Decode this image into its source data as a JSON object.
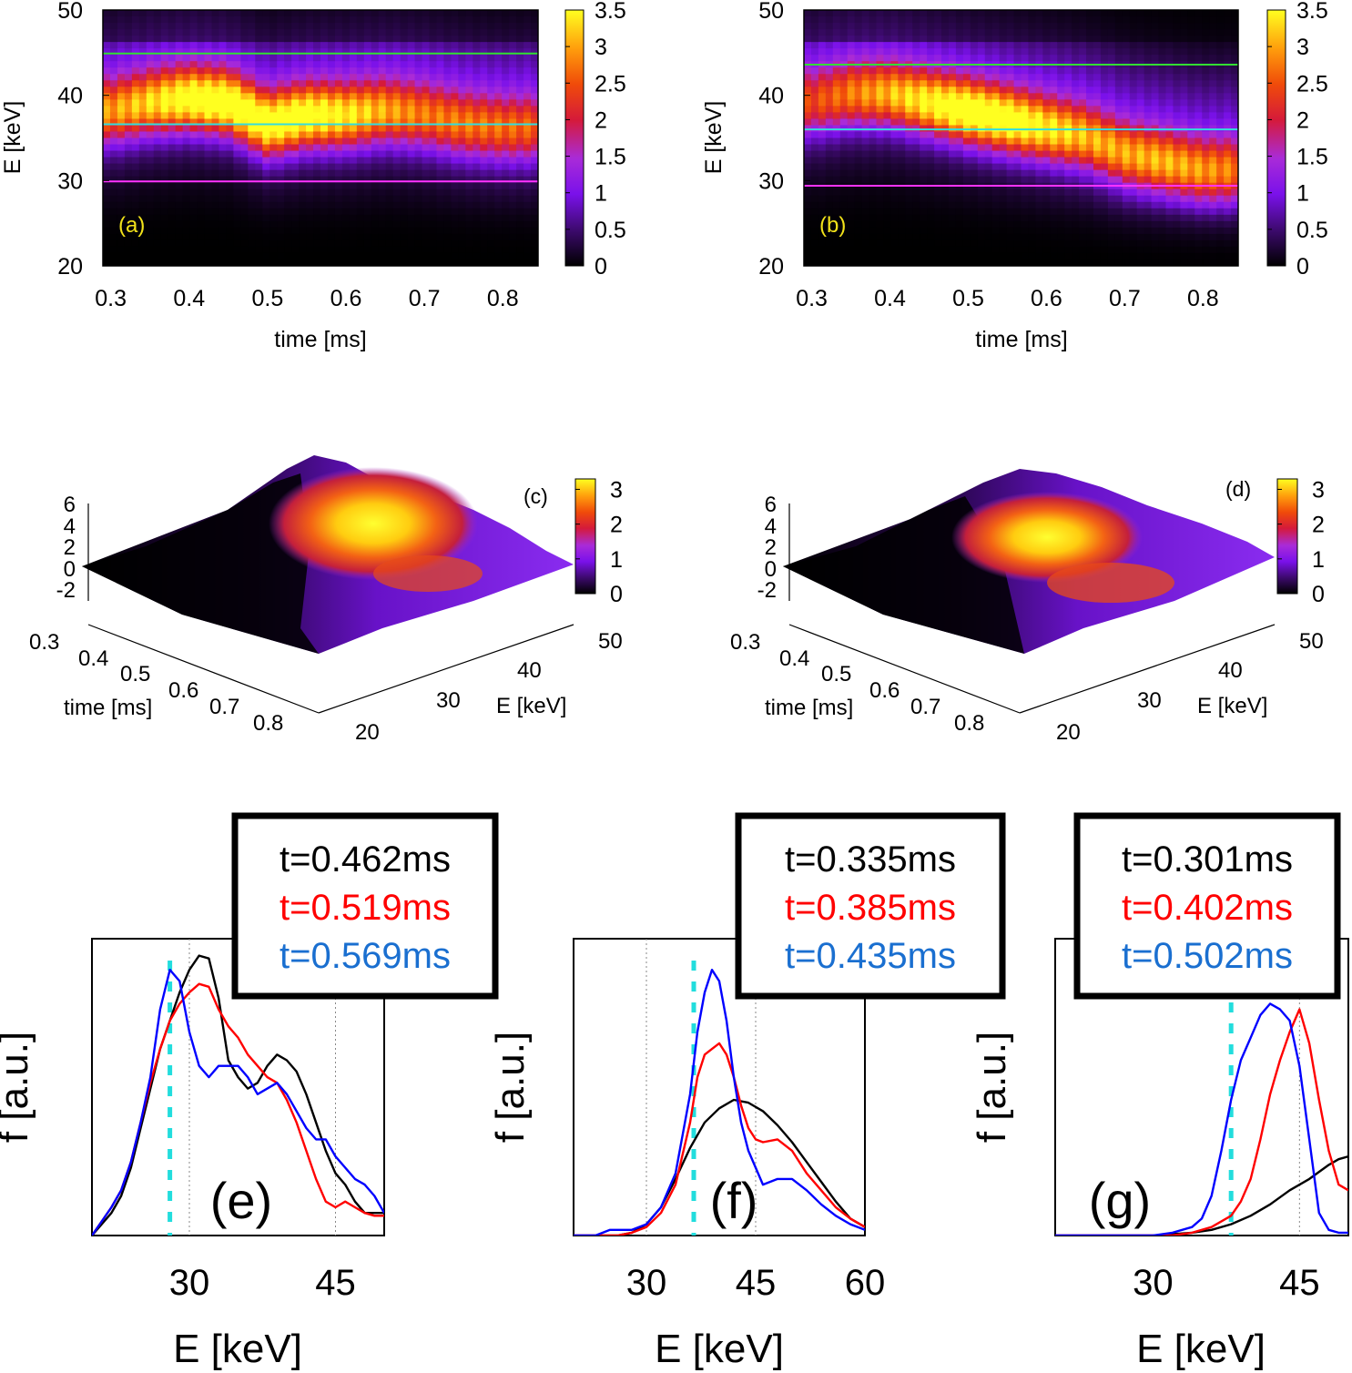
{
  "heatmaps": [
    {
      "label": "(a)",
      "xlabel": "time [ms]",
      "ylabel": "E [keV]",
      "xticks": [
        "0.3",
        "0.4",
        "0.5",
        "0.6",
        "0.7",
        "0.8"
      ],
      "xtick_values": [
        0.3,
        0.4,
        0.5,
        0.6,
        0.7,
        0.8
      ],
      "yticks": [
        "20",
        "30",
        "40",
        "50"
      ],
      "ytick_values": [
        20,
        30,
        40,
        50
      ],
      "xlim": [
        0.29,
        0.845
      ],
      "ylim": [
        20,
        50
      ],
      "cbar_ticks": [
        "0",
        "0.5",
        "1",
        "1.5",
        "2",
        "2.5",
        "3",
        "3.5"
      ],
      "cbar_values": [
        0,
        0.5,
        1,
        1.5,
        2,
        2.5,
        3,
        3.5
      ],
      "cbar_range": [
        0,
        3.5
      ],
      "hlines": [
        {
          "E": 44.9,
          "color": "#33dd33"
        },
        {
          "E": 36.6,
          "color": "#33dddd"
        },
        {
          "E": 29.9,
          "color": "#ff33ff"
        }
      ],
      "ridge": [
        [
          0.3,
          38
        ],
        [
          0.35,
          39
        ],
        [
          0.4,
          39.5
        ],
        [
          0.45,
          39
        ],
        [
          0.5,
          36.5
        ],
        [
          0.55,
          37.5
        ],
        [
          0.6,
          37.5
        ],
        [
          0.65,
          38
        ],
        [
          0.7,
          37.5
        ],
        [
          0.75,
          36.5
        ],
        [
          0.8,
          36
        ],
        [
          0.84,
          36
        ]
      ],
      "amplitude": [
        [
          0.3,
          2.2
        ],
        [
          0.35,
          2.6
        ],
        [
          0.4,
          3.2
        ],
        [
          0.45,
          3.4
        ],
        [
          0.5,
          3.3
        ],
        [
          0.55,
          3.2
        ],
        [
          0.6,
          2.8
        ],
        [
          0.65,
          2.3
        ],
        [
          0.7,
          2.0
        ],
        [
          0.75,
          2.0
        ],
        [
          0.8,
          1.9
        ],
        [
          0.84,
          1.8
        ]
      ]
    },
    {
      "label": "(b)",
      "xlabel": "time [ms]",
      "ylabel": "E [keV]",
      "xticks": [
        "0.3",
        "0.4",
        "0.5",
        "0.6",
        "0.7",
        "0.8"
      ],
      "xtick_values": [
        0.3,
        0.4,
        0.5,
        0.6,
        0.7,
        0.8
      ],
      "yticks": [
        "20",
        "30",
        "40",
        "50"
      ],
      "ytick_values": [
        20,
        30,
        40,
        50
      ],
      "xlim": [
        0.29,
        0.845
      ],
      "ylim": [
        20,
        50
      ],
      "cbar_ticks": [
        "0",
        "0.5",
        "1",
        "1.5",
        "2",
        "2.5",
        "3",
        "3.5"
      ],
      "cbar_values": [
        0,
        0.5,
        1,
        1.5,
        2,
        2.5,
        3,
        3.5
      ],
      "cbar_range": [
        0,
        3.5
      ],
      "hlines": [
        {
          "E": 43.6,
          "color": "#33dd33"
        },
        {
          "E": 36.0,
          "color": "#33dddd"
        },
        {
          "E": 29.4,
          "color": "#ff33ff"
        }
      ],
      "ridge": [
        [
          0.3,
          39
        ],
        [
          0.35,
          40
        ],
        [
          0.4,
          40
        ],
        [
          0.45,
          39
        ],
        [
          0.5,
          38
        ],
        [
          0.55,
          37
        ],
        [
          0.6,
          36
        ],
        [
          0.65,
          35
        ],
        [
          0.7,
          33
        ],
        [
          0.75,
          32
        ],
        [
          0.8,
          31
        ],
        [
          0.84,
          31
        ]
      ],
      "amplitude": [
        [
          0.3,
          1.6
        ],
        [
          0.35,
          2.0
        ],
        [
          0.4,
          2.4
        ],
        [
          0.45,
          2.9
        ],
        [
          0.5,
          3.4
        ],
        [
          0.55,
          3.3
        ],
        [
          0.6,
          2.8
        ],
        [
          0.65,
          2.4
        ],
        [
          0.7,
          2.3
        ],
        [
          0.75,
          2.4
        ],
        [
          0.8,
          2.2
        ],
        [
          0.84,
          2.0
        ]
      ]
    }
  ],
  "surfaces": [
    {
      "label": "(c)",
      "zticks": [
        "6",
        "4",
        "2",
        "0",
        "-2"
      ],
      "time_ticks": [
        "0.3",
        "0.4",
        "0.5",
        "0.6",
        "0.7",
        "0.8"
      ],
      "time_label": "time [ms]",
      "E_ticks": [
        "20",
        "30",
        "40",
        "50"
      ],
      "E_label": "E [keV]",
      "cbar_ticks": [
        "0",
        "1",
        "2",
        "3"
      ],
      "cbar_values": [
        0,
        1,
        2,
        3
      ],
      "cbar_range": [
        0,
        3.3
      ]
    },
    {
      "label": "(d)",
      "zticks": [
        "6",
        "4",
        "2",
        "0",
        "-2"
      ],
      "time_ticks": [
        "0.3",
        "0.4",
        "0.5",
        "0.6",
        "0.7",
        "0.8"
      ],
      "time_label": "time [ms]",
      "E_ticks": [
        "20",
        "30",
        "40",
        "50"
      ],
      "E_label": "E [keV]",
      "cbar_ticks": [
        "0",
        "1",
        "2",
        "3"
      ],
      "cbar_values": [
        0,
        1,
        2,
        3
      ],
      "cbar_range": [
        0,
        3.3
      ]
    }
  ],
  "chart_data": [
    {
      "type": "line",
      "panel": "(e)",
      "xlabel": "E [keV]",
      "ylabel": "f [a.u.]",
      "xlim": [
        20,
        50
      ],
      "ylim": [
        0,
        1.05
      ],
      "xticks": [
        "30",
        "45"
      ],
      "xtick_values": [
        30,
        45
      ],
      "gridlines_x": [
        30,
        45
      ],
      "vline": {
        "E": 28,
        "color": "#22dddd"
      },
      "legend": [
        "t=0.462ms",
        "t=0.519ms",
        "t=0.569ms"
      ],
      "series": [
        {
          "name": "t=0.462ms",
          "color": "#000000",
          "x": [
            20,
            21,
            22,
            23,
            24,
            25,
            26,
            27,
            28,
            29,
            30,
            31,
            32,
            33,
            34,
            35,
            36,
            37,
            38,
            39,
            40,
            41,
            42,
            43,
            44,
            45,
            46,
            47,
            48,
            49,
            50
          ],
          "y": [
            0.0,
            0.04,
            0.08,
            0.14,
            0.24,
            0.38,
            0.52,
            0.66,
            0.76,
            0.86,
            0.94,
            0.99,
            0.98,
            0.84,
            0.62,
            0.56,
            0.52,
            0.54,
            0.6,
            0.64,
            0.62,
            0.58,
            0.5,
            0.4,
            0.3,
            0.22,
            0.18,
            0.12,
            0.08,
            0.08,
            0.08
          ]
        },
        {
          "name": "t=0.519ms",
          "color": "#ff0000",
          "x": [
            20,
            21,
            22,
            23,
            24,
            25,
            26,
            27,
            28,
            29,
            30,
            31,
            32,
            33,
            34,
            35,
            36,
            37,
            38,
            39,
            40,
            41,
            42,
            43,
            44,
            45,
            46,
            47,
            48,
            49,
            50
          ],
          "y": [
            0.0,
            0.05,
            0.1,
            0.16,
            0.26,
            0.4,
            0.54,
            0.66,
            0.76,
            0.82,
            0.86,
            0.89,
            0.88,
            0.8,
            0.74,
            0.7,
            0.64,
            0.6,
            0.56,
            0.54,
            0.48,
            0.4,
            0.3,
            0.2,
            0.12,
            0.1,
            0.12,
            0.1,
            0.08,
            0.07,
            0.07
          ]
        },
        {
          "name": "t=0.569ms",
          "color": "#0000ff",
          "x": [
            20,
            21,
            22,
            23,
            24,
            25,
            26,
            27,
            28,
            29,
            30,
            31,
            32,
            33,
            34,
            35,
            36,
            37,
            38,
            39,
            40,
            41,
            42,
            43,
            44,
            45,
            46,
            47,
            48,
            49,
            50
          ],
          "y": [
            0.0,
            0.05,
            0.1,
            0.16,
            0.26,
            0.4,
            0.56,
            0.8,
            0.94,
            0.9,
            0.72,
            0.6,
            0.56,
            0.6,
            0.6,
            0.6,
            0.56,
            0.5,
            0.52,
            0.54,
            0.5,
            0.44,
            0.38,
            0.34,
            0.34,
            0.28,
            0.24,
            0.2,
            0.18,
            0.14,
            0.08
          ]
        }
      ]
    },
    {
      "type": "line",
      "panel": "(f)",
      "xlabel": "E [keV]",
      "ylabel": "f [a.u.]",
      "xlim": [
        20,
        60
      ],
      "ylim": [
        0,
        1.05
      ],
      "xticks": [
        "30",
        "45",
        "60"
      ],
      "xtick_values": [
        30,
        45,
        60
      ],
      "gridlines_x": [
        30,
        45
      ],
      "vline": {
        "E": 36.5,
        "color": "#22dddd"
      },
      "legend": [
        "t=0.335ms",
        "t=0.385ms",
        "t=0.435ms"
      ],
      "series": [
        {
          "name": "t=0.335ms",
          "color": "#000000",
          "x": [
            20,
            23,
            26,
            28,
            30,
            32,
            34,
            36,
            38,
            40,
            42,
            44,
            46,
            48,
            50,
            52,
            54,
            56,
            58,
            60
          ],
          "y": [
            0.0,
            0.0,
            0.0,
            0.01,
            0.04,
            0.1,
            0.2,
            0.31,
            0.4,
            0.45,
            0.48,
            0.47,
            0.44,
            0.39,
            0.33,
            0.26,
            0.19,
            0.12,
            0.06,
            0.03
          ]
        },
        {
          "name": "t=0.385ms",
          "color": "#ff0000",
          "x": [
            20,
            23,
            26,
            28,
            30,
            32,
            34,
            36,
            37,
            38,
            39,
            40,
            41,
            42,
            43,
            44,
            45,
            46,
            48,
            50,
            52,
            54,
            56,
            58,
            60
          ],
          "y": [
            0.0,
            0.0,
            0.0,
            0.01,
            0.03,
            0.08,
            0.18,
            0.4,
            0.56,
            0.64,
            0.66,
            0.68,
            0.64,
            0.56,
            0.46,
            0.38,
            0.34,
            0.33,
            0.34,
            0.3,
            0.22,
            0.16,
            0.1,
            0.06,
            0.03
          ]
        },
        {
          "name": "t=0.435ms",
          "color": "#0000ff",
          "x": [
            20,
            23,
            25,
            26,
            28,
            30,
            32,
            34,
            36,
            37,
            38,
            39,
            40,
            41,
            42,
            43,
            44,
            45,
            46,
            48,
            50,
            52,
            54,
            56,
            58,
            60
          ],
          "y": [
            0.0,
            0.0,
            0.02,
            0.02,
            0.02,
            0.04,
            0.1,
            0.22,
            0.5,
            0.72,
            0.86,
            0.94,
            0.9,
            0.76,
            0.56,
            0.4,
            0.3,
            0.24,
            0.18,
            0.2,
            0.2,
            0.16,
            0.11,
            0.07,
            0.04,
            0.02
          ]
        }
      ]
    },
    {
      "type": "line",
      "panel": "(g)",
      "xlabel": "E [keV]",
      "ylabel": "f [a.u.]",
      "xlim": [
        20,
        50
      ],
      "ylim": [
        0,
        1.05
      ],
      "xticks": [
        "30",
        "45"
      ],
      "xtick_values": [
        30,
        45
      ],
      "gridlines_x": [
        45
      ],
      "vline": {
        "E": 38,
        "color": "#22dddd"
      },
      "legend": [
        "t=0.301ms",
        "t=0.402ms",
        "t=0.502ms"
      ],
      "series": [
        {
          "name": "t=0.301ms",
          "color": "#000000",
          "x": [
            20,
            26,
            30,
            34,
            36,
            38,
            40,
            42,
            44,
            46,
            48,
            49,
            50
          ],
          "y": [
            0.0,
            0.0,
            0.0,
            0.01,
            0.02,
            0.04,
            0.07,
            0.11,
            0.16,
            0.2,
            0.25,
            0.27,
            0.28
          ]
        },
        {
          "name": "t=0.402ms",
          "color": "#ff0000",
          "x": [
            20,
            28,
            32,
            34,
            36,
            38,
            39,
            40,
            41,
            42,
            43,
            44,
            45,
            46,
            47,
            48,
            49,
            50
          ],
          "y": [
            0.0,
            0.0,
            0.0,
            0.01,
            0.03,
            0.07,
            0.12,
            0.2,
            0.34,
            0.5,
            0.62,
            0.72,
            0.8,
            0.68,
            0.48,
            0.3,
            0.18,
            0.16
          ]
        },
        {
          "name": "t=0.502ms",
          "color": "#0000ff",
          "x": [
            20,
            28,
            30,
            32,
            34,
            35,
            36,
            37,
            38,
            39,
            40,
            41,
            42,
            43,
            44,
            45,
            46,
            47,
            48,
            49,
            50
          ],
          "y": [
            0.0,
            0.0,
            0.0,
            0.01,
            0.03,
            0.06,
            0.14,
            0.3,
            0.48,
            0.62,
            0.7,
            0.78,
            0.82,
            0.8,
            0.76,
            0.6,
            0.34,
            0.08,
            0.02,
            0.01,
            0.01
          ]
        }
      ]
    }
  ]
}
